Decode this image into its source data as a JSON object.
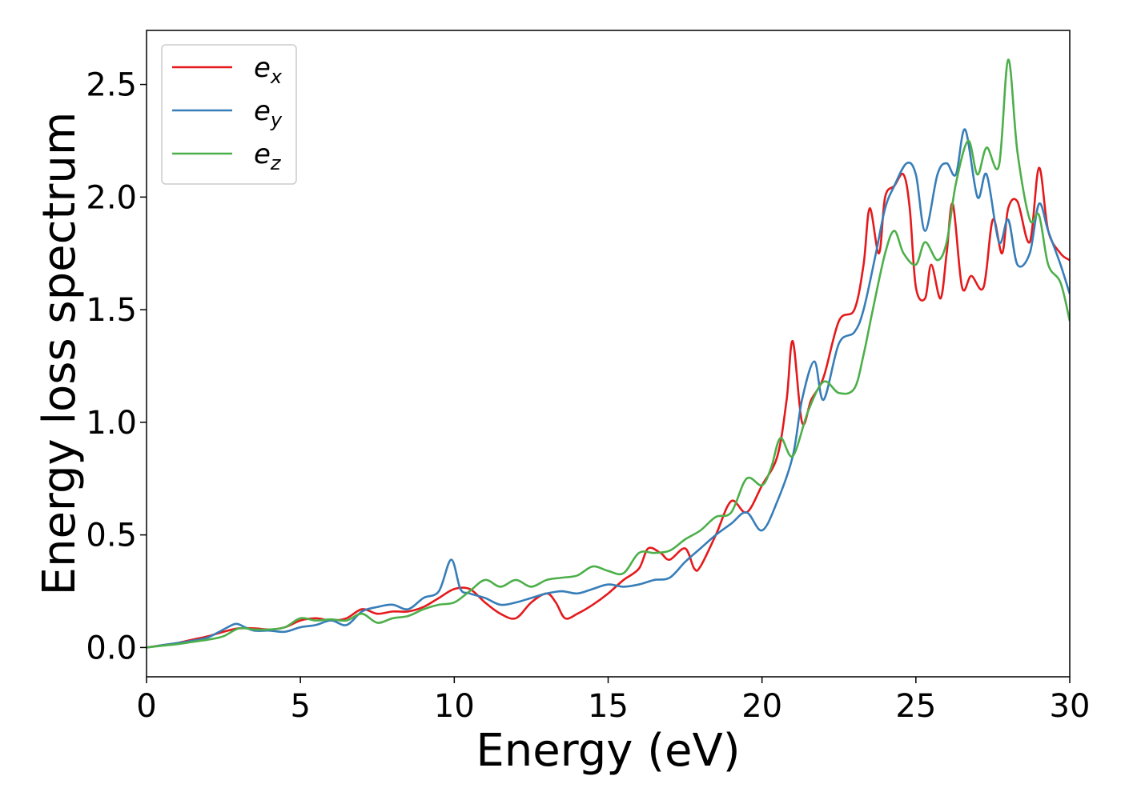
{
  "chart_data": {
    "type": "line",
    "xlabel": "Energy (eV)",
    "ylabel": "Energy loss spectrum",
    "xlim": [
      0,
      30
    ],
    "ylim": [
      -0.13,
      2.74
    ],
    "xticks": [
      0,
      5,
      10,
      15,
      20,
      25,
      30
    ],
    "xtick_labels": [
      "0",
      "5",
      "10",
      "15",
      "20",
      "25",
      "30"
    ],
    "yticks": [
      0.0,
      0.5,
      1.0,
      1.5,
      2.0,
      2.5
    ],
    "ytick_labels": [
      "0.0",
      "0.5",
      "1.0",
      "1.5",
      "2.0",
      "2.5"
    ],
    "grid": false,
    "legend_position": "top-left",
    "series": [
      {
        "name": "e",
        "sub": "x",
        "color": "#e41a1c",
        "points": [
          [
            0,
            0
          ],
          [
            0.5,
            0.01
          ],
          [
            1,
            0.02
          ],
          [
            1.5,
            0.035
          ],
          [
            2,
            0.05
          ],
          [
            2.5,
            0.07
          ],
          [
            3,
            0.085
          ],
          [
            3.5,
            0.085
          ],
          [
            4,
            0.08
          ],
          [
            4.5,
            0.09
          ],
          [
            5,
            0.12
          ],
          [
            5.5,
            0.13
          ],
          [
            6,
            0.12
          ],
          [
            6.5,
            0.13
          ],
          [
            7,
            0.17
          ],
          [
            7.5,
            0.15
          ],
          [
            8,
            0.16
          ],
          [
            8.5,
            0.16
          ],
          [
            9,
            0.18
          ],
          [
            9.5,
            0.22
          ],
          [
            10,
            0.26
          ],
          [
            10.5,
            0.26
          ],
          [
            11,
            0.2
          ],
          [
            11.5,
            0.15
          ],
          [
            12,
            0.13
          ],
          [
            12.5,
            0.2
          ],
          [
            13,
            0.24
          ],
          [
            13.3,
            0.2
          ],
          [
            13.6,
            0.13
          ],
          [
            14,
            0.15
          ],
          [
            14.5,
            0.19
          ],
          [
            15,
            0.24
          ],
          [
            15.5,
            0.3
          ],
          [
            16,
            0.35
          ],
          [
            16.3,
            0.44
          ],
          [
            16.7,
            0.42
          ],
          [
            17,
            0.39
          ],
          [
            17.5,
            0.44
          ],
          [
            17.8,
            0.35
          ],
          [
            18,
            0.36
          ],
          [
            18.5,
            0.5
          ],
          [
            19,
            0.65
          ],
          [
            19.5,
            0.6
          ],
          [
            20,
            0.72
          ],
          [
            20.5,
            0.85
          ],
          [
            20.8,
            1.1
          ],
          [
            21,
            1.36
          ],
          [
            21.3,
            1.0
          ],
          [
            21.6,
            1.1
          ],
          [
            22,
            1.2
          ],
          [
            22.5,
            1.45
          ],
          [
            23,
            1.5
          ],
          [
            23.3,
            1.7
          ],
          [
            23.5,
            1.95
          ],
          [
            23.8,
            1.75
          ],
          [
            24,
            2.0
          ],
          [
            24.3,
            2.05
          ],
          [
            24.6,
            2.1
          ],
          [
            24.8,
            1.95
          ],
          [
            25,
            1.6
          ],
          [
            25.3,
            1.55
          ],
          [
            25.5,
            1.7
          ],
          [
            25.8,
            1.55
          ],
          [
            26,
            1.75
          ],
          [
            26.2,
            1.97
          ],
          [
            26.5,
            1.6
          ],
          [
            26.8,
            1.65
          ],
          [
            27.2,
            1.6
          ],
          [
            27.5,
            1.9
          ],
          [
            27.8,
            1.75
          ],
          [
            28,
            1.95
          ],
          [
            28.3,
            1.98
          ],
          [
            28.7,
            1.8
          ],
          [
            29,
            2.13
          ],
          [
            29.3,
            1.85
          ],
          [
            29.7,
            1.75
          ],
          [
            30,
            1.72
          ]
        ]
      },
      {
        "name": "e",
        "sub": "y",
        "color": "#377eb8",
        "points": [
          [
            0,
            0
          ],
          [
            0.5,
            0.01
          ],
          [
            1,
            0.02
          ],
          [
            1.5,
            0.03
          ],
          [
            2,
            0.045
          ],
          [
            2.5,
            0.08
          ],
          [
            2.9,
            0.105
          ],
          [
            3.2,
            0.09
          ],
          [
            3.5,
            0.075
          ],
          [
            4,
            0.075
          ],
          [
            4.5,
            0.07
          ],
          [
            5,
            0.09
          ],
          [
            5.5,
            0.1
          ],
          [
            6,
            0.12
          ],
          [
            6.5,
            0.1
          ],
          [
            7,
            0.16
          ],
          [
            7.5,
            0.18
          ],
          [
            8,
            0.19
          ],
          [
            8.5,
            0.17
          ],
          [
            9,
            0.22
          ],
          [
            9.5,
            0.25
          ],
          [
            9.9,
            0.39
          ],
          [
            10.2,
            0.26
          ],
          [
            10.5,
            0.24
          ],
          [
            11,
            0.22
          ],
          [
            11.5,
            0.19
          ],
          [
            12,
            0.2
          ],
          [
            12.5,
            0.22
          ],
          [
            13,
            0.24
          ],
          [
            13.5,
            0.25
          ],
          [
            14,
            0.24
          ],
          [
            14.5,
            0.26
          ],
          [
            15,
            0.28
          ],
          [
            15.5,
            0.27
          ],
          [
            16,
            0.28
          ],
          [
            16.5,
            0.3
          ],
          [
            17,
            0.31
          ],
          [
            17.5,
            0.38
          ],
          [
            18,
            0.44
          ],
          [
            18.5,
            0.5
          ],
          [
            19,
            0.55
          ],
          [
            19.5,
            0.6
          ],
          [
            20,
            0.52
          ],
          [
            20.5,
            0.65
          ],
          [
            21,
            0.85
          ],
          [
            21.3,
            1.1
          ],
          [
            21.7,
            1.27
          ],
          [
            22,
            1.1
          ],
          [
            22.5,
            1.35
          ],
          [
            23,
            1.4
          ],
          [
            23.3,
            1.5
          ],
          [
            23.7,
            1.75
          ],
          [
            24,
            1.95
          ],
          [
            24.3,
            2.05
          ],
          [
            24.7,
            2.15
          ],
          [
            25,
            2.1
          ],
          [
            25.3,
            1.85
          ],
          [
            25.7,
            2.1
          ],
          [
            26,
            2.15
          ],
          [
            26.3,
            2.1
          ],
          [
            26.6,
            2.3
          ],
          [
            27,
            2.0
          ],
          [
            27.3,
            2.1
          ],
          [
            27.7,
            1.8
          ],
          [
            28,
            1.9
          ],
          [
            28.3,
            1.7
          ],
          [
            28.7,
            1.75
          ],
          [
            29,
            1.97
          ],
          [
            29.3,
            1.85
          ],
          [
            29.7,
            1.7
          ],
          [
            30,
            1.57
          ]
        ]
      },
      {
        "name": "e",
        "sub": "z",
        "color": "#4daf4a",
        "points": [
          [
            0,
            0
          ],
          [
            0.5,
            0.008
          ],
          [
            1,
            0.015
          ],
          [
            1.5,
            0.025
          ],
          [
            2,
            0.035
          ],
          [
            2.5,
            0.05
          ],
          [
            3,
            0.085
          ],
          [
            3.5,
            0.08
          ],
          [
            4,
            0.08
          ],
          [
            4.5,
            0.09
          ],
          [
            5,
            0.13
          ],
          [
            5.5,
            0.12
          ],
          [
            6,
            0.125
          ],
          [
            6.5,
            0.12
          ],
          [
            7,
            0.15
          ],
          [
            7.5,
            0.11
          ],
          [
            8,
            0.13
          ],
          [
            8.5,
            0.14
          ],
          [
            9,
            0.17
          ],
          [
            9.5,
            0.19
          ],
          [
            10,
            0.2
          ],
          [
            10.5,
            0.25
          ],
          [
            11,
            0.3
          ],
          [
            11.5,
            0.27
          ],
          [
            12,
            0.3
          ],
          [
            12.5,
            0.27
          ],
          [
            13,
            0.3
          ],
          [
            13.5,
            0.31
          ],
          [
            14,
            0.32
          ],
          [
            14.5,
            0.36
          ],
          [
            15,
            0.34
          ],
          [
            15.5,
            0.33
          ],
          [
            16,
            0.42
          ],
          [
            16.5,
            0.42
          ],
          [
            17,
            0.43
          ],
          [
            17.5,
            0.48
          ],
          [
            18,
            0.52
          ],
          [
            18.5,
            0.58
          ],
          [
            19,
            0.6
          ],
          [
            19.5,
            0.75
          ],
          [
            20,
            0.72
          ],
          [
            20.3,
            0.8
          ],
          [
            20.6,
            0.93
          ],
          [
            21,
            0.85
          ],
          [
            21.5,
            1.05
          ],
          [
            22,
            1.18
          ],
          [
            22.5,
            1.13
          ],
          [
            23,
            1.15
          ],
          [
            23.3,
            1.3
          ],
          [
            23.6,
            1.5
          ],
          [
            24,
            1.75
          ],
          [
            24.3,
            1.85
          ],
          [
            24.6,
            1.75
          ],
          [
            25,
            1.7
          ],
          [
            25.3,
            1.8
          ],
          [
            25.7,
            1.72
          ],
          [
            26,
            1.8
          ],
          [
            26.3,
            2.06
          ],
          [
            26.7,
            2.25
          ],
          [
            27,
            2.1
          ],
          [
            27.3,
            2.22
          ],
          [
            27.7,
            2.14
          ],
          [
            28,
            2.61
          ],
          [
            28.3,
            2.2
          ],
          [
            28.7,
            1.9
          ],
          [
            29,
            1.92
          ],
          [
            29.3,
            1.7
          ],
          [
            29.7,
            1.62
          ],
          [
            30,
            1.45
          ]
        ]
      }
    ]
  }
}
